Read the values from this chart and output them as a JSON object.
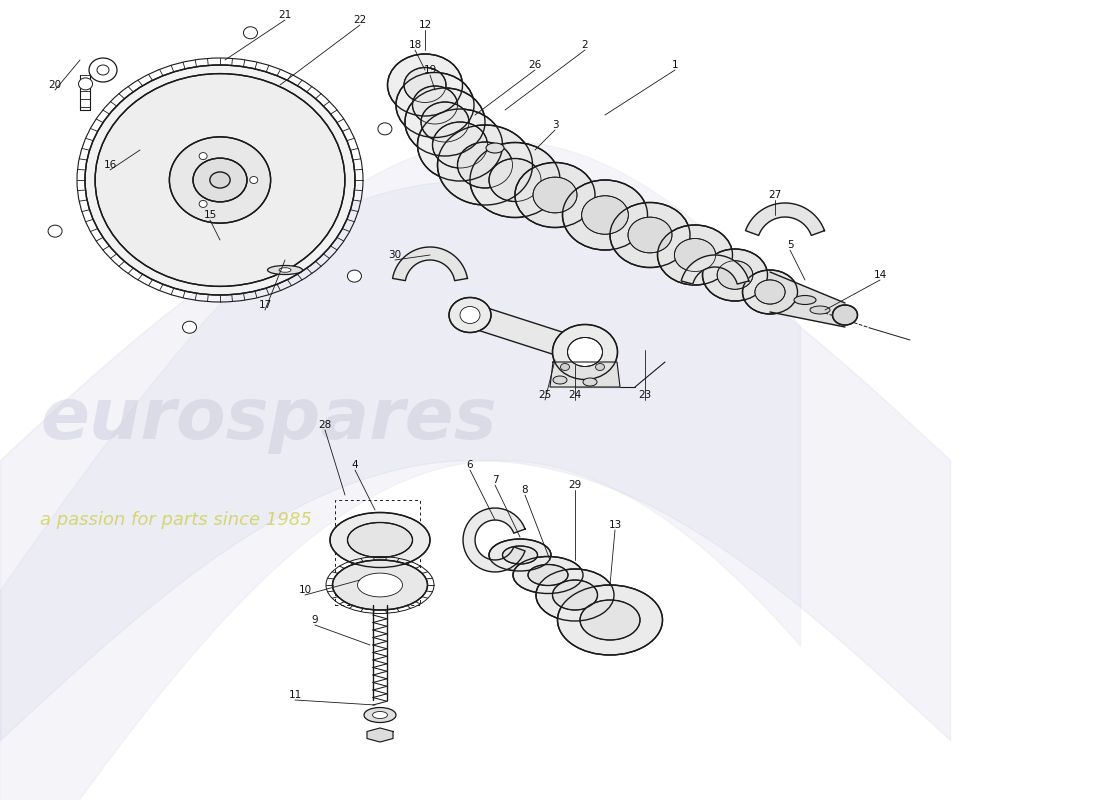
{
  "bg_color": "#ffffff",
  "line_color": "#1a1a1a",
  "watermark_text_1": "eurospares",
  "watermark_text_2": "a passion for parts since 1985",
  "fig_width": 11.0,
  "fig_height": 8.0,
  "dpi": 100
}
